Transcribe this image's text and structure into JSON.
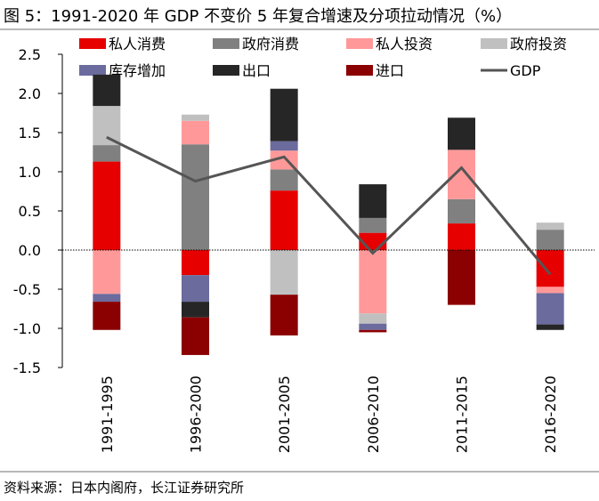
{
  "figure": {
    "title": "图 5：1991-2020 年 GDP 不变价 5 年复合增速及分项拉动情况（%）",
    "source": "资料来源：日本内阁府，长江证券研究所"
  },
  "chart_data": {
    "type": "bar",
    "stacked": true,
    "title": "1991-2020 年 GDP 不变价 5 年复合增速及分项拉动情况（%）",
    "xlabel": "",
    "ylabel": "",
    "ylim": [
      -1.5,
      2.5
    ],
    "yticks": [
      2.5,
      2.0,
      1.5,
      1.0,
      0.5,
      0.0,
      -0.5,
      -1.0,
      -1.5
    ],
    "ytick_labels": [
      "2.5",
      "2.0",
      "1.5",
      "1.0",
      "0.5",
      "0.0",
      "-0.5",
      "-1.0",
      "-1.5"
    ],
    "categories": [
      "1991-1995",
      "1996-2000",
      "2001-2005",
      "2006-2010",
      "2011-2015",
      "2016-2020"
    ],
    "grid": false,
    "legend_position": "top",
    "series": [
      {
        "name": "私人消费",
        "color": "#e60000",
        "values": [
          1.13,
          -0.32,
          0.76,
          0.22,
          0.34,
          -0.47
        ]
      },
      {
        "name": "政府消费",
        "color": "#808080",
        "values": [
          0.21,
          1.35,
          0.27,
          0.19,
          0.31,
          0.26
        ]
      },
      {
        "name": "私人投资",
        "color": "#ff9999",
        "values": [
          -0.56,
          0.3,
          0.24,
          -0.81,
          0.63,
          -0.08
        ]
      },
      {
        "name": "政府投资",
        "color": "#c0c0c0",
        "values": [
          0.5,
          0.08,
          -0.57,
          -0.13,
          0.0,
          0.09
        ]
      },
      {
        "name": "库存增加",
        "color": "#6b6b9e",
        "values": [
          -0.1,
          -0.34,
          0.12,
          -0.08,
          0.0,
          -0.4
        ]
      },
      {
        "name": "出口",
        "color": "#262626",
        "values": [
          0.4,
          -0.2,
          0.67,
          0.43,
          0.41,
          -0.07
        ]
      },
      {
        "name": "进口",
        "color": "#8b0000",
        "values": [
          -0.36,
          -0.48,
          -0.52,
          -0.03,
          -0.7,
          0.0
        ]
      }
    ],
    "line": {
      "name": "GDP",
      "color": "#555555",
      "values": [
        1.44,
        0.88,
        1.19,
        -0.04,
        1.05,
        -0.31
      ]
    },
    "legend": {
      "items": [
        {
          "label": "私人消费",
          "kind": "box",
          "color": "#e60000"
        },
        {
          "label": "政府消费",
          "kind": "box",
          "color": "#808080"
        },
        {
          "label": "私人投资",
          "kind": "box",
          "color": "#ff9999"
        },
        {
          "label": "政府投资",
          "kind": "box",
          "color": "#c0c0c0"
        },
        {
          "label": "库存增加",
          "kind": "box",
          "color": "#6b6b9e"
        },
        {
          "label": "出口",
          "kind": "box",
          "color": "#262626"
        },
        {
          "label": "进口",
          "kind": "box",
          "color": "#8b0000"
        },
        {
          "label": "GDP",
          "kind": "line",
          "color": "#555555"
        }
      ]
    }
  }
}
